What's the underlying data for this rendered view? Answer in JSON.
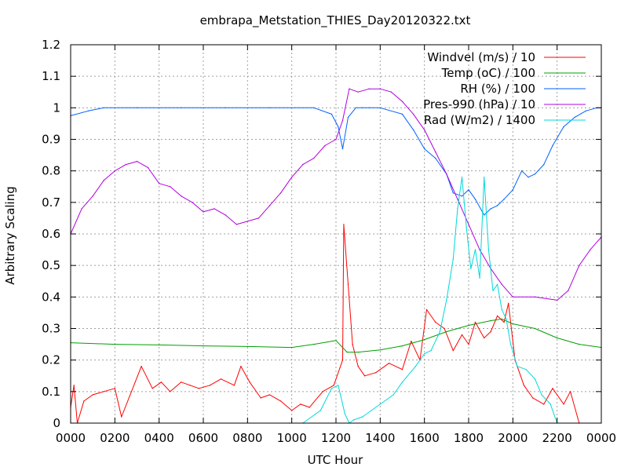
{
  "chart_data": {
    "type": "line",
    "title": "embrapa_Metstation_THIES_Day20120322.txt",
    "xlabel": "UTC Hour",
    "ylabel": "Arbitrary Scaling",
    "xlim": [
      0,
      24
    ],
    "ylim": [
      0,
      1.2
    ],
    "grid": true,
    "legend_position": "top-right",
    "x_ticks": [
      {
        "value": 0,
        "label": "0000"
      },
      {
        "value": 2,
        "label": "0200"
      },
      {
        "value": 4,
        "label": "0400"
      },
      {
        "value": 6,
        "label": "0600"
      },
      {
        "value": 8,
        "label": "0800"
      },
      {
        "value": 10,
        "label": "1000"
      },
      {
        "value": 12,
        "label": "1200"
      },
      {
        "value": 14,
        "label": "1400"
      },
      {
        "value": 16,
        "label": "1600"
      },
      {
        "value": 18,
        "label": "1800"
      },
      {
        "value": 20,
        "label": "2000"
      },
      {
        "value": 22,
        "label": "2200"
      },
      {
        "value": 24,
        "label": "0000"
      }
    ],
    "y_ticks": [
      {
        "value": 0,
        "label": "0"
      },
      {
        "value": 0.1,
        "label": "0.1"
      },
      {
        "value": 0.2,
        "label": "0.2"
      },
      {
        "value": 0.3,
        "label": "0.3"
      },
      {
        "value": 0.4,
        "label": "0.4"
      },
      {
        "value": 0.5,
        "label": "0.5"
      },
      {
        "value": 0.6,
        "label": "0.6"
      },
      {
        "value": 0.7,
        "label": "0.7"
      },
      {
        "value": 0.8,
        "label": "0.8"
      },
      {
        "value": 0.9,
        "label": "0.9"
      },
      {
        "value": 1,
        "label": "1"
      },
      {
        "value": 1.1,
        "label": "1.1"
      },
      {
        "value": 1.2,
        "label": "1.2"
      }
    ],
    "series": [
      {
        "name": "Windvel (m/s) / 10",
        "color": "#ff0000",
        "x": [
          0,
          0.15,
          0.3,
          0.6,
          1.0,
          1.5,
          2.0,
          2.3,
          3.2,
          3.7,
          4.1,
          4.5,
          5.0,
          5.4,
          5.8,
          6.3,
          6.8,
          7.4,
          7.7,
          8.1,
          8.6,
          9.0,
          9.5,
          10.0,
          10.4,
          10.8,
          11.4,
          11.9,
          12.3,
          12.35,
          12.55,
          12.75,
          13.0,
          13.3,
          13.8,
          14.4,
          15.0,
          15.4,
          15.8,
          16.1,
          16.5,
          16.9,
          17.3,
          17.7,
          18.0,
          18.3,
          18.7,
          19.0,
          19.3,
          19.6,
          19.8,
          20.1,
          20.5,
          20.9,
          21.4,
          21.8,
          22.3,
          22.6,
          23.0
        ],
        "y": [
          0.05,
          0.12,
          0.0,
          0.07,
          0.09,
          0.1,
          0.11,
          0.02,
          0.18,
          0.11,
          0.13,
          0.1,
          0.13,
          0.12,
          0.11,
          0.12,
          0.14,
          0.12,
          0.18,
          0.13,
          0.08,
          0.09,
          0.07,
          0.04,
          0.06,
          0.05,
          0.1,
          0.12,
          0.2,
          0.63,
          0.44,
          0.25,
          0.18,
          0.15,
          0.16,
          0.19,
          0.17,
          0.26,
          0.2,
          0.36,
          0.32,
          0.3,
          0.23,
          0.28,
          0.25,
          0.32,
          0.27,
          0.29,
          0.34,
          0.32,
          0.38,
          0.2,
          0.12,
          0.08,
          0.06,
          0.11,
          0.06,
          0.1,
          0.0
        ]
      },
      {
        "name": "Temp (oC) / 100",
        "color": "#00a000",
        "x": [
          0,
          2,
          4,
          6,
          8,
          10,
          11,
          12,
          12.5,
          13,
          14,
          15,
          16,
          17,
          18,
          19,
          19.5,
          20,
          21,
          22,
          23,
          24
        ],
        "y": [
          0.255,
          0.25,
          0.248,
          0.245,
          0.243,
          0.24,
          0.25,
          0.262,
          0.225,
          0.225,
          0.232,
          0.245,
          0.265,
          0.29,
          0.31,
          0.325,
          0.33,
          0.315,
          0.3,
          0.27,
          0.25,
          0.24
        ]
      },
      {
        "name": "RH (%) / 100",
        "color": "#0060ff",
        "x": [
          0,
          0.8,
          1.5,
          3,
          5,
          7,
          9,
          11,
          11.8,
          12.1,
          12.3,
          12.55,
          12.9,
          13.2,
          13.5,
          14.0,
          15.0,
          15.5,
          16.0,
          16.5,
          17.0,
          17.3,
          17.7,
          18.0,
          18.3,
          18.7,
          19.0,
          19.3,
          19.6,
          20.0,
          20.4,
          20.7,
          21.0,
          21.4,
          21.8,
          22.3,
          22.8,
          23.3,
          23.8,
          24
        ],
        "y": [
          0.975,
          0.99,
          1.0,
          1.0,
          1.0,
          1.0,
          1.0,
          1.0,
          0.98,
          0.94,
          0.87,
          0.97,
          1.0,
          1.0,
          1.0,
          1.0,
          0.98,
          0.93,
          0.87,
          0.84,
          0.79,
          0.73,
          0.72,
          0.74,
          0.71,
          0.66,
          0.68,
          0.69,
          0.71,
          0.74,
          0.8,
          0.78,
          0.79,
          0.82,
          0.88,
          0.94,
          0.97,
          0.99,
          1.0,
          1.0
        ]
      },
      {
        "name": "Pres-990 (hPa) / 10",
        "color": "#b000e0",
        "x": [
          0,
          0.5,
          1,
          1.5,
          2,
          2.5,
          3,
          3.5,
          4,
          4.5,
          5,
          5.5,
          6,
          6.5,
          7,
          7.5,
          8,
          8.5,
          9,
          9.5,
          10,
          10.5,
          11,
          11.5,
          12,
          12.3,
          12.6,
          13,
          13.5,
          14,
          14.5,
          15,
          15.5,
          16,
          16.5,
          17,
          17.5,
          18,
          18.5,
          19,
          19.5,
          20,
          21,
          22,
          22.5,
          23,
          23.5,
          24
        ],
        "y": [
          0.6,
          0.68,
          0.72,
          0.77,
          0.8,
          0.82,
          0.83,
          0.81,
          0.76,
          0.75,
          0.72,
          0.7,
          0.67,
          0.68,
          0.66,
          0.63,
          0.64,
          0.65,
          0.69,
          0.73,
          0.78,
          0.82,
          0.84,
          0.88,
          0.9,
          0.96,
          1.06,
          1.05,
          1.06,
          1.06,
          1.05,
          1.02,
          0.98,
          0.93,
          0.86,
          0.79,
          0.71,
          0.63,
          0.55,
          0.49,
          0.44,
          0.4,
          0.4,
          0.39,
          0.42,
          0.5,
          0.55,
          0.59
        ]
      },
      {
        "name": "Rad (W/m2) / 1400",
        "color": "#00d8d8",
        "x": [
          0,
          9.9,
          10.5,
          11.3,
          11.8,
          12.1,
          12.4,
          12.6,
          12.8,
          13.2,
          14.0,
          14.6,
          15.0,
          15.6,
          16.0,
          16.3,
          16.7,
          17.0,
          17.3,
          17.5,
          17.7,
          17.9,
          18.1,
          18.3,
          18.5,
          18.7,
          18.9,
          19.1,
          19.3,
          19.5,
          19.7,
          19.9,
          20.2,
          20.6,
          21.0,
          21.3,
          21.7,
          22.0,
          24
        ],
        "y": [
          0,
          0,
          0.0,
          0.04,
          0.11,
          0.12,
          0.03,
          0.0,
          0.01,
          0.02,
          0.06,
          0.09,
          0.13,
          0.18,
          0.22,
          0.23,
          0.29,
          0.39,
          0.52,
          0.68,
          0.78,
          0.62,
          0.49,
          0.55,
          0.46,
          0.78,
          0.55,
          0.42,
          0.44,
          0.36,
          0.33,
          0.25,
          0.18,
          0.17,
          0.14,
          0.09,
          0.06,
          0.0,
          0
        ]
      }
    ]
  }
}
